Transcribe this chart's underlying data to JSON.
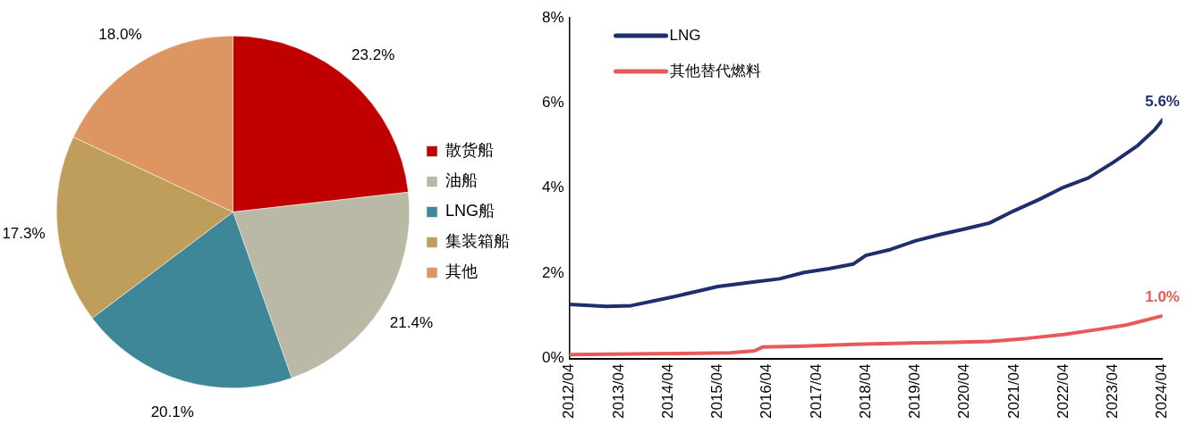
{
  "chart_data": [
    {
      "type": "pie",
      "categories": [
        "散货船",
        "油船",
        "LNG船",
        "集装箱船",
        "其他"
      ],
      "values": [
        23.2,
        21.4,
        20.1,
        17.3,
        18.0
      ],
      "colors": [
        "#c00000",
        "#bab9a6",
        "#3d8799",
        "#bf9e5c",
        "#dd9662"
      ],
      "value_labels": [
        "23.2%",
        "21.4%",
        "20.1%",
        "17.3%",
        "18.0%"
      ],
      "legend": "right"
    },
    {
      "type": "line",
      "ylim": [
        0,
        8
      ],
      "yticks": [
        {
          "value": 0,
          "label": "0%"
        },
        {
          "value": 2,
          "label": "2%"
        },
        {
          "value": 4,
          "label": "4%"
        },
        {
          "value": 6,
          "label": "6%"
        },
        {
          "value": 8,
          "label": "8%"
        }
      ],
      "xlim": [
        "2012-04",
        "2024-04"
      ],
      "xticks": [
        {
          "value": "2012-04",
          "label": "2012/04"
        },
        {
          "value": "2013-04",
          "label": "2013/04"
        },
        {
          "value": "2014-04",
          "label": "2014/04"
        },
        {
          "value": "2015-04",
          "label": "2015/04"
        },
        {
          "value": "2016-04",
          "label": "2016/04"
        },
        {
          "value": "2017-04",
          "label": "2017/04"
        },
        {
          "value": "2018-04",
          "label": "2018/04"
        },
        {
          "value": "2019-04",
          "label": "2019/04"
        },
        {
          "value": "2020-04",
          "label": "2020/04"
        },
        {
          "value": "2021-04",
          "label": "2021/04"
        },
        {
          "value": "2022-04",
          "label": "2022/04"
        },
        {
          "value": "2023-04",
          "label": "2023/04"
        },
        {
          "value": "2024-04",
          "label": "2024/04"
        }
      ],
      "grid": false,
      "legend": "top left",
      "marker": "none",
      "line_style": "solid",
      "series": [
        {
          "name": "LNG",
          "color": "#1f2f6e",
          "x": [
            "2012-04",
            "2013-01",
            "2013-07",
            "2014-04",
            "2015-01",
            "2015-04",
            "2016-01",
            "2016-07",
            "2017-01",
            "2017-07",
            "2018-01",
            "2018-04",
            "2018-10",
            "2019-04",
            "2019-10",
            "2020-04",
            "2020-10",
            "2021-04",
            "2021-10",
            "2022-04",
            "2022-10",
            "2023-04",
            "2023-10",
            "2024-02",
            "2024-04"
          ],
          "values": [
            1.27,
            1.22,
            1.24,
            1.42,
            1.62,
            1.69,
            1.8,
            1.87,
            2.02,
            2.11,
            2.22,
            2.42,
            2.56,
            2.76,
            2.91,
            3.04,
            3.18,
            3.47,
            3.73,
            4.02,
            4.24,
            4.6,
            5.0,
            5.36,
            5.6
          ],
          "value_labels": [
            null,
            null,
            null,
            null,
            null,
            null,
            null,
            null,
            null,
            null,
            null,
            null,
            null,
            null,
            null,
            null,
            null,
            null,
            null,
            null,
            null,
            null,
            null,
            null,
            "5.6%"
          ]
        },
        {
          "name": "其他替代燃料",
          "color": "#e85a5a",
          "x": [
            "2012-04",
            "2014-01",
            "2015-07",
            "2016-01",
            "2016-03",
            "2017-01",
            "2018-01",
            "2019-01",
            "2020-01",
            "2020-10",
            "2021-07",
            "2022-04",
            "2023-01",
            "2023-07",
            "2024-04"
          ],
          "values": [
            0.09,
            0.11,
            0.13,
            0.18,
            0.27,
            0.29,
            0.33,
            0.36,
            0.38,
            0.4,
            0.47,
            0.56,
            0.69,
            0.78,
            1.0
          ],
          "value_labels": [
            null,
            null,
            null,
            null,
            null,
            null,
            null,
            null,
            null,
            null,
            null,
            null,
            null,
            null,
            "1.0%"
          ]
        }
      ]
    }
  ]
}
